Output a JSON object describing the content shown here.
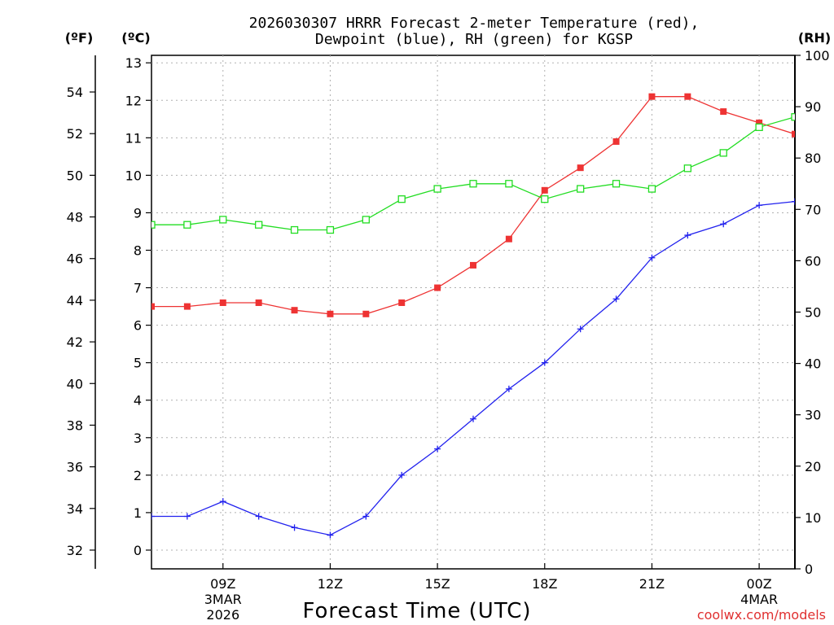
{
  "chart_data": {
    "type": "line",
    "title_line1": "2026030307 HRRR Forecast 2-meter Temperature (red),",
    "title_line2": "Dewpoint (blue), RH (green) for KGSP",
    "xlabel": "Forecast Time (UTC)",
    "watermark": "coolwx.com/models",
    "unit_f": "(ºF)",
    "unit_c": "(ºC)",
    "unit_rh": "(RH)",
    "x_range": [
      7,
      25
    ],
    "x_ticks": [
      {
        "x": 9,
        "label": "09Z",
        "sub1": "3MAR",
        "sub2": "2026"
      },
      {
        "x": 12,
        "label": "12Z",
        "sub1": "",
        "sub2": ""
      },
      {
        "x": 15,
        "label": "15Z",
        "sub1": "",
        "sub2": ""
      },
      {
        "x": 18,
        "label": "18Z",
        "sub1": "",
        "sub2": ""
      },
      {
        "x": 21,
        "label": "21Z",
        "sub1": "",
        "sub2": ""
      },
      {
        "x": 24,
        "label": "00Z",
        "sub1": "4MAR",
        "sub2": ""
      }
    ],
    "c_range": [
      -0.5,
      13.2
    ],
    "c_ticks": [
      0,
      1,
      2,
      3,
      4,
      5,
      6,
      7,
      8,
      9,
      10,
      11,
      12,
      13
    ],
    "f_ticks": [
      32,
      34,
      36,
      38,
      40,
      42,
      44,
      46,
      48,
      50,
      52,
      54
    ],
    "rh_range": [
      0,
      100
    ],
    "rh_ticks": [
      0,
      10,
      20,
      30,
      40,
      50,
      60,
      70,
      80,
      90,
      100
    ],
    "x": [
      7,
      8,
      9,
      10,
      11,
      12,
      13,
      14,
      15,
      16,
      17,
      18,
      19,
      20,
      21,
      22,
      23,
      24,
      25
    ],
    "series": [
      {
        "name": "Temperature",
        "unit": "C",
        "color": "#ee3333",
        "marker": "filled-square",
        "values": [
          6.5,
          6.5,
          6.6,
          6.6,
          6.4,
          6.3,
          6.3,
          6.6,
          7.0,
          7.6,
          8.3,
          9.6,
          10.2,
          10.9,
          12.1,
          12.1,
          11.7,
          11.4,
          11.1
        ]
      },
      {
        "name": "Dewpoint",
        "unit": "C",
        "color": "#2222ee",
        "marker": "plus",
        "values": [
          0.9,
          0.9,
          1.3,
          0.9,
          0.6,
          0.4,
          0.9,
          2.0,
          2.7,
          3.5,
          4.3,
          5.0,
          5.9,
          6.7,
          7.8,
          8.4,
          8.7,
          9.2,
          9.3
        ]
      },
      {
        "name": "RH",
        "unit": "%",
        "color": "#22dd22",
        "marker": "open-square",
        "values": [
          67,
          67,
          68,
          67,
          66,
          66,
          68,
          72,
          74,
          75,
          75,
          72,
          74,
          75,
          74,
          78,
          81,
          86,
          88
        ]
      }
    ]
  }
}
